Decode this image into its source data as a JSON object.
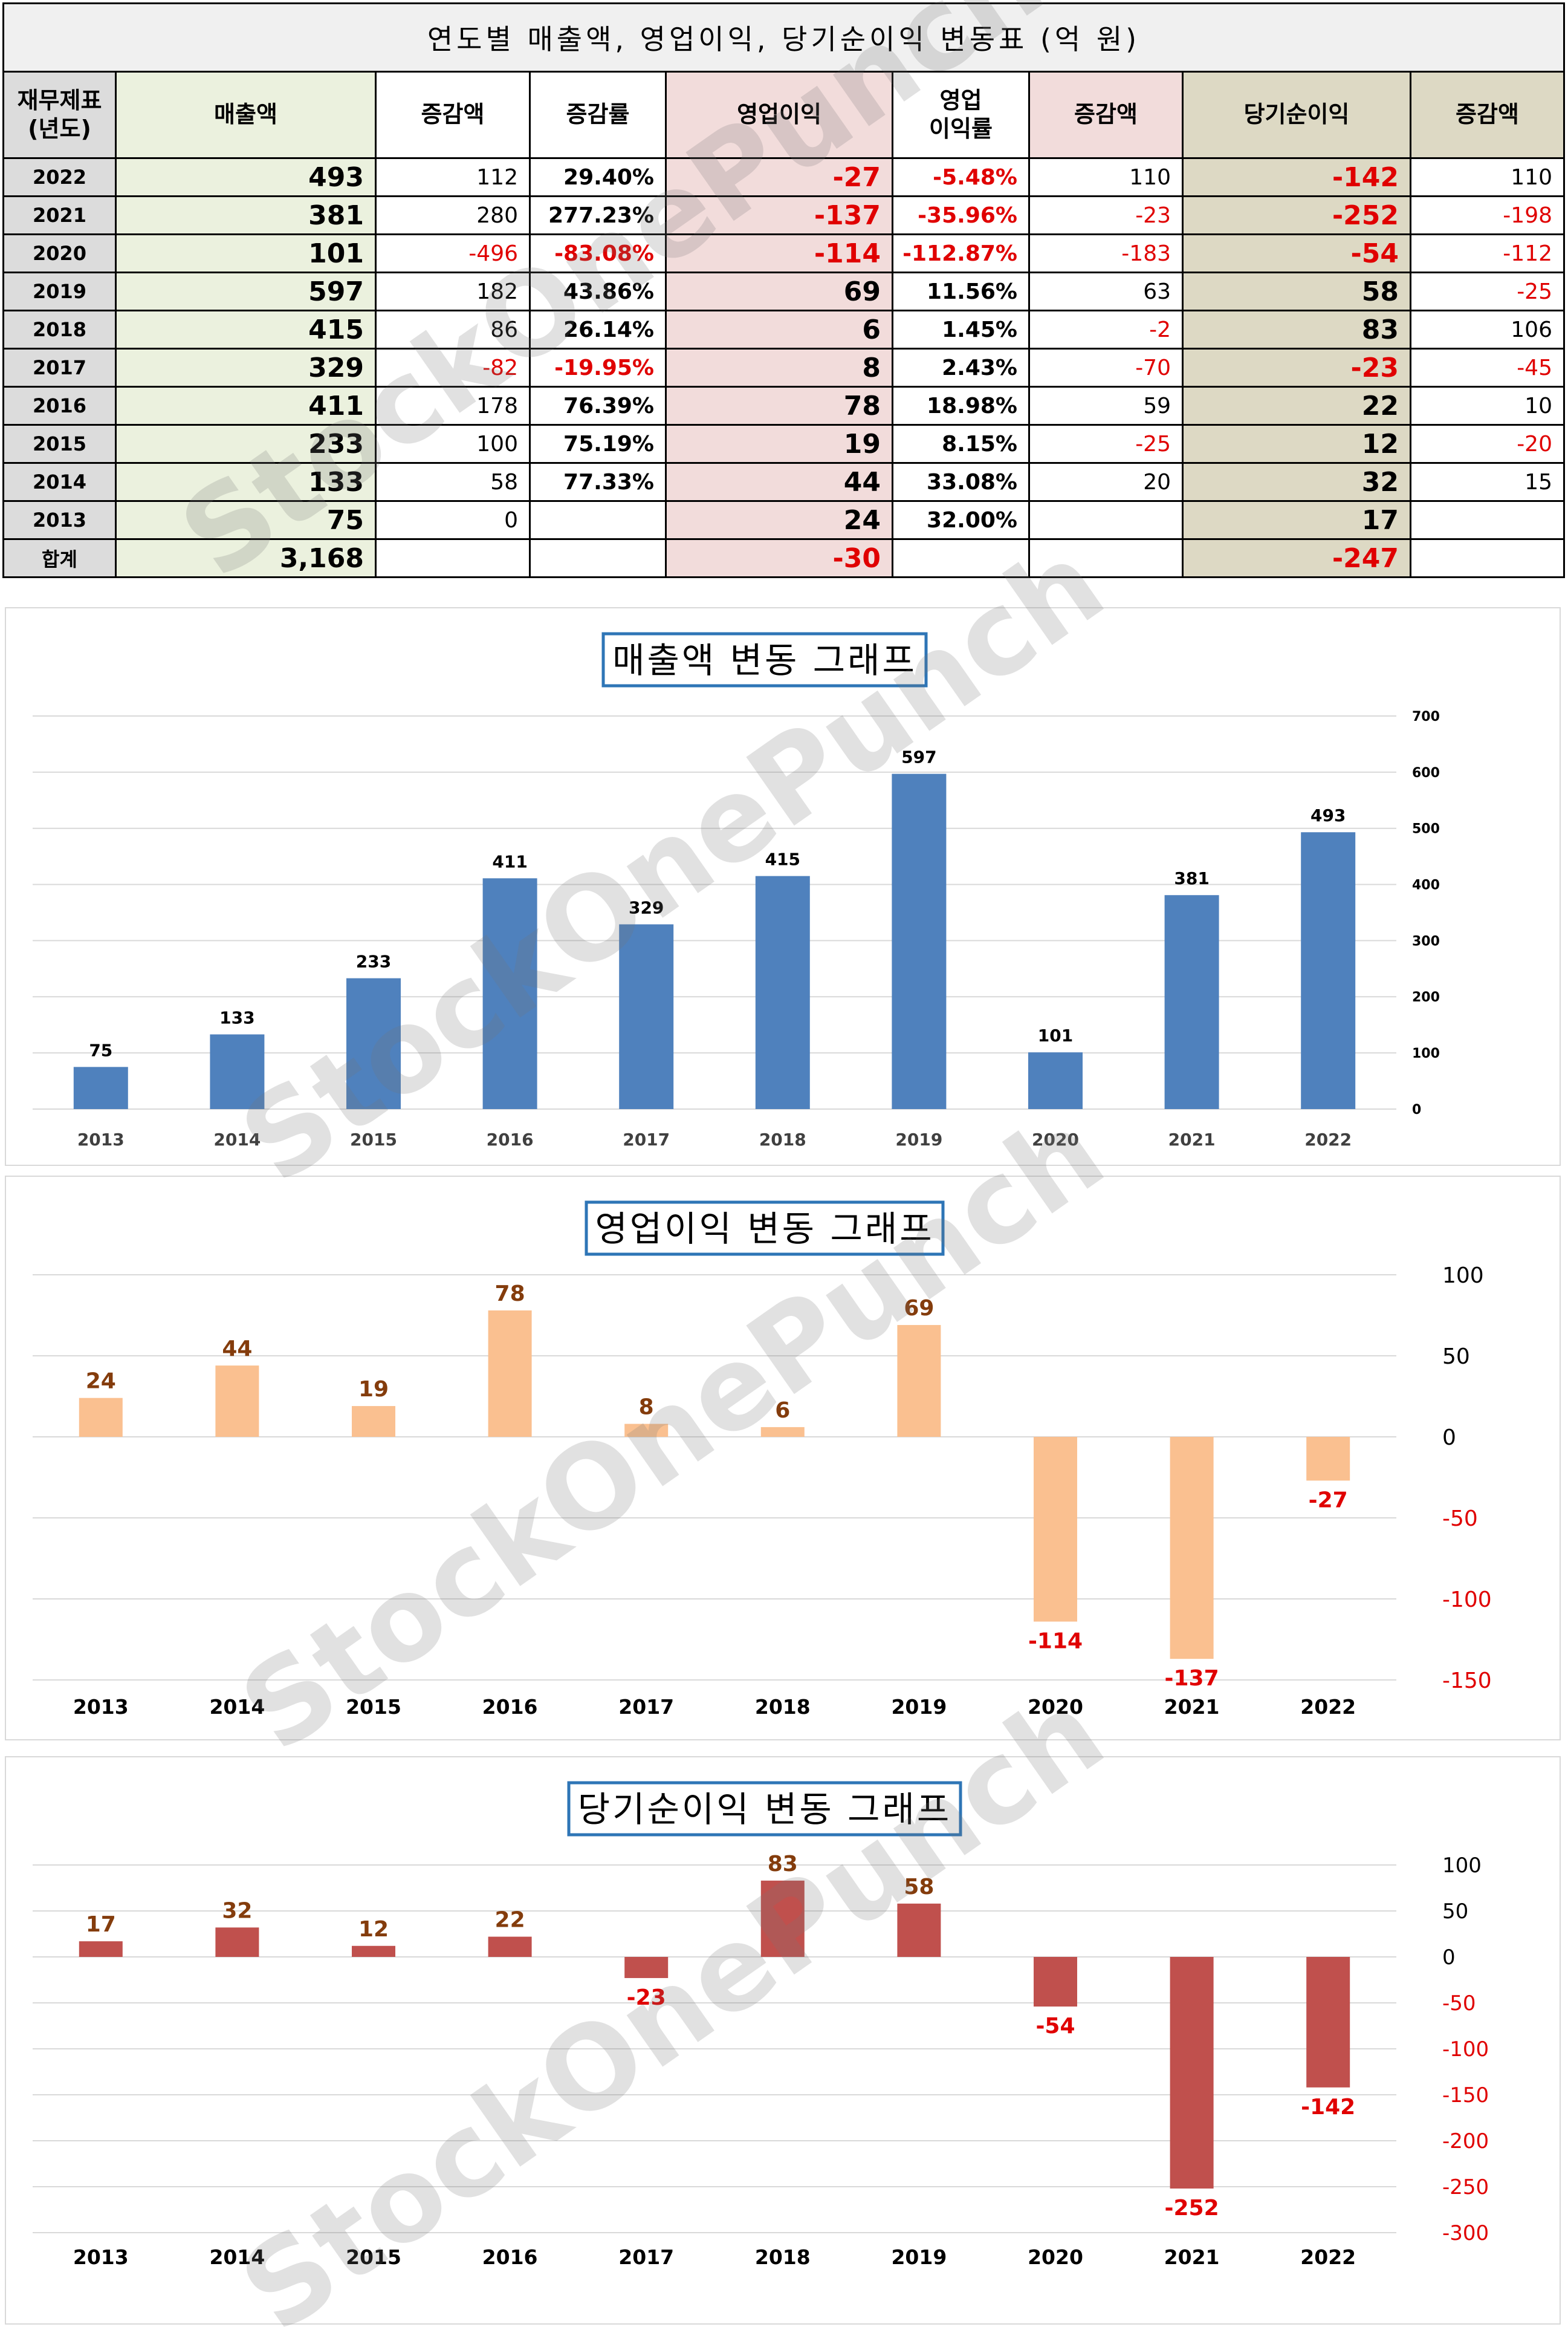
{
  "table": {
    "title": "연도별 매출액, 영업이익, 당기순이익 변동표     (억 원)",
    "headers": {
      "year": "재무제표\n(년도)",
      "revenue": "매출액",
      "rev_change": "증감액",
      "rev_rate": "증감률",
      "op": "영업이익",
      "op_margin": "영업\n이익률",
      "op_change": "증감액",
      "net": "당기순이익",
      "net_change": "증감액"
    },
    "rows": [
      {
        "year": "2022",
        "revenue": "493",
        "rev_change": "112",
        "rev_rate": "29.40%",
        "op": "-27",
        "op_margin": "-5.48%",
        "op_change": "110",
        "net": "-142",
        "net_change": "110"
      },
      {
        "year": "2021",
        "revenue": "381",
        "rev_change": "280",
        "rev_rate": "277.23%",
        "op": "-137",
        "op_margin": "-35.96%",
        "op_change": "-23",
        "net": "-252",
        "net_change": "-198"
      },
      {
        "year": "2020",
        "revenue": "101",
        "rev_change": "-496",
        "rev_rate": "-83.08%",
        "op": "-114",
        "op_margin": "-112.87%",
        "op_change": "-183",
        "net": "-54",
        "net_change": "-112"
      },
      {
        "year": "2019",
        "revenue": "597",
        "rev_change": "182",
        "rev_rate": "43.86%",
        "op": "69",
        "op_margin": "11.56%",
        "op_change": "63",
        "net": "58",
        "net_change": "-25"
      },
      {
        "year": "2018",
        "revenue": "415",
        "rev_change": "86",
        "rev_rate": "26.14%",
        "op": "6",
        "op_margin": "1.45%",
        "op_change": "-2",
        "net": "83",
        "net_change": "106"
      },
      {
        "year": "2017",
        "revenue": "329",
        "rev_change": "-82",
        "rev_rate": "-19.95%",
        "op": "8",
        "op_margin": "2.43%",
        "op_change": "-70",
        "net": "-23",
        "net_change": "-45"
      },
      {
        "year": "2016",
        "revenue": "411",
        "rev_change": "178",
        "rev_rate": "76.39%",
        "op": "78",
        "op_margin": "18.98%",
        "op_change": "59",
        "net": "22",
        "net_change": "10"
      },
      {
        "year": "2015",
        "revenue": "233",
        "rev_change": "100",
        "rev_rate": "75.19%",
        "op": "19",
        "op_margin": "8.15%",
        "op_change": "-25",
        "net": "12",
        "net_change": "-20"
      },
      {
        "year": "2014",
        "revenue": "133",
        "rev_change": "58",
        "rev_rate": "77.33%",
        "op": "44",
        "op_margin": "33.08%",
        "op_change": "20",
        "net": "32",
        "net_change": "15"
      },
      {
        "year": "2013",
        "revenue": "75",
        "rev_change": "0",
        "rev_rate": "",
        "op": "24",
        "op_margin": "32.00%",
        "op_change": "",
        "net": "17",
        "net_change": ""
      }
    ],
    "total": {
      "year": "합계",
      "revenue": "3,168",
      "op": "-30",
      "net": "-247"
    }
  },
  "watermark": "StockOnePunch",
  "colors": {
    "revenue_bar": "#4f81bd",
    "op_bar": "#fac090",
    "net_bar": "#c0504d",
    "positive_label": "#843c0c",
    "negative_label": "#e00000",
    "grid": "#d9d9d9",
    "title_border": "#2e75b6"
  },
  "chart_data": [
    {
      "type": "bar",
      "title": "매출액 변동 그래프",
      "categories": [
        "2013",
        "2014",
        "2015",
        "2016",
        "2017",
        "2018",
        "2019",
        "2020",
        "2021",
        "2022"
      ],
      "values": [
        75,
        133,
        233,
        411,
        329,
        415,
        597,
        101,
        381,
        493
      ],
      "ylim": [
        0,
        700
      ],
      "yticks": [
        0,
        100,
        200,
        300,
        400,
        500,
        600,
        700
      ],
      "axis_side": "right",
      "grid": true,
      "xlabel": "",
      "ylabel": ""
    },
    {
      "type": "bar",
      "title": "영업이익 변동 그래프",
      "categories": [
        "2013",
        "2014",
        "2015",
        "2016",
        "2017",
        "2018",
        "2019",
        "2020",
        "2021",
        "2022"
      ],
      "values": [
        24,
        44,
        19,
        78,
        8,
        6,
        69,
        -114,
        -137,
        -27
      ],
      "ylim": [
        -150,
        100
      ],
      "yticks": [
        -150,
        -100,
        -50,
        0,
        50,
        100
      ],
      "axis_side": "right",
      "grid": true,
      "xlabel": "",
      "ylabel": ""
    },
    {
      "type": "bar",
      "title": "당기순이익 변동 그래프",
      "categories": [
        "2013",
        "2014",
        "2015",
        "2016",
        "2017",
        "2018",
        "2019",
        "2020",
        "2021",
        "2022"
      ],
      "values": [
        17,
        32,
        12,
        22,
        -23,
        83,
        58,
        -54,
        -252,
        -142
      ],
      "ylim": [
        -300,
        100
      ],
      "yticks": [
        -300,
        -250,
        -200,
        -150,
        -100,
        -50,
        0,
        50,
        100
      ],
      "axis_side": "right",
      "grid": true,
      "xlabel": "",
      "ylabel": ""
    }
  ]
}
